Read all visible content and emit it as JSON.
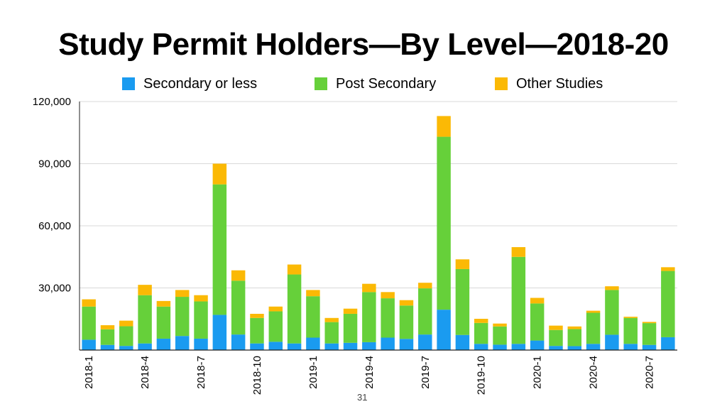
{
  "slide": {
    "title": "Study Permit Holders—By Level—2018-20",
    "page_number": "31"
  },
  "colors": {
    "secondary": "#1a9bf0",
    "post_secondary": "#66d03a",
    "other": "#fbb905",
    "grid": "#d9d9d9",
    "axis": "#222222"
  },
  "chart_data": {
    "type": "bar",
    "stacked": true,
    "title": "Study Permit Holders—By Level—2018-20",
    "legend_position": "top",
    "grid": true,
    "ylim": [
      0,
      120000
    ],
    "yticks": [
      {
        "value": 30000,
        "label": "30,000"
      },
      {
        "value": 60000,
        "label": "60,000"
      },
      {
        "value": 90000,
        "label": "90,000"
      },
      {
        "value": 120000,
        "label": "120,000"
      }
    ],
    "categories": [
      "2018-1",
      "2018-2",
      "2018-3",
      "2018-4",
      "2018-5",
      "2018-6",
      "2018-7",
      "2018-8",
      "2018-9",
      "2018-10",
      "2018-11",
      "2018-12",
      "2019-1",
      "2019-2",
      "2019-3",
      "2019-4",
      "2019-5",
      "2019-6",
      "2019-7",
      "2019-8",
      "2019-9",
      "2019-10",
      "2019-11",
      "2019-12",
      "2020-1",
      "2020-2",
      "2020-3",
      "2020-4",
      "2020-5",
      "2020-6",
      "2020-7",
      "2020-8"
    ],
    "x_tick_labels": [
      {
        "index": 0,
        "label": "2018-1"
      },
      {
        "index": 3,
        "label": "2018-4"
      },
      {
        "index": 6,
        "label": "2018-7"
      },
      {
        "index": 9,
        "label": "2018-10"
      },
      {
        "index": 12,
        "label": "2019-1"
      },
      {
        "index": 15,
        "label": "2019-4"
      },
      {
        "index": 18,
        "label": "2019-7"
      },
      {
        "index": 21,
        "label": "2019-10"
      },
      {
        "index": 24,
        "label": "2020-1"
      },
      {
        "index": 27,
        "label": "2020-4"
      },
      {
        "index": 30,
        "label": "2020-7"
      }
    ],
    "series": [
      {
        "name": "Secondary or less",
        "color": "#1a9bf0",
        "values": [
          5000,
          2500,
          2000,
          3200,
          5500,
          6800,
          5500,
          17000,
          7500,
          3200,
          4000,
          3200,
          6000,
          3200,
          3500,
          3800,
          6000,
          5400,
          7500,
          19500,
          7300,
          3000,
          2600,
          3000,
          4600,
          2000,
          1900,
          3000,
          7400,
          3000,
          2500,
          6200
        ]
      },
      {
        "name": "Post Secondary",
        "color": "#66d03a",
        "values": [
          16000,
          7500,
          9500,
          23300,
          15500,
          18900,
          18000,
          63000,
          26000,
          12300,
          14700,
          33300,
          20000,
          10300,
          14000,
          24200,
          19000,
          16100,
          22300,
          83500,
          31800,
          10100,
          8800,
          42000,
          17900,
          7700,
          8200,
          15000,
          21600,
          12500,
          10500,
          32000
        ]
      },
      {
        "name": "Other Studies",
        "color": "#fbb905",
        "values": [
          3500,
          2000,
          2700,
          5000,
          2700,
          3300,
          3000,
          10000,
          5000,
          2000,
          2300,
          4800,
          3000,
          2000,
          2500,
          4000,
          3000,
          2600,
          2700,
          10000,
          4700,
          2000,
          1400,
          4700,
          2700,
          2100,
          1300,
          1000,
          1800,
          600,
          600,
          1800
        ]
      }
    ]
  }
}
